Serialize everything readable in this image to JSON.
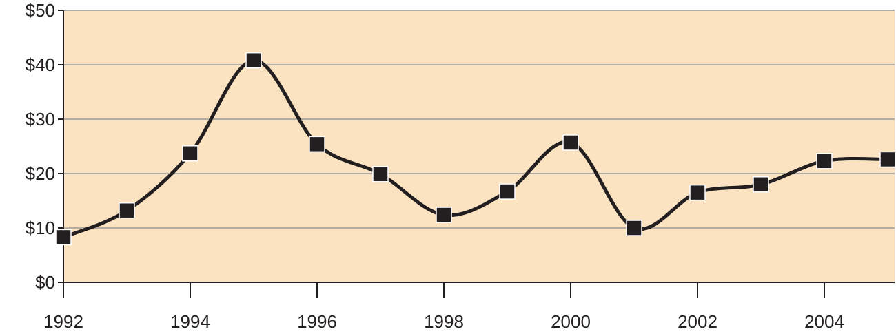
{
  "chart_data": {
    "type": "line",
    "x": [
      1992,
      1993,
      1994,
      1995,
      1996,
      1997,
      1998,
      1999,
      2000,
      2001,
      2002,
      2003,
      2004,
      2005
    ],
    "series": [
      {
        "values": [
          8.3,
          13.2,
          23.7,
          40.8,
          25.4,
          19.9,
          12.4,
          16.7,
          25.7,
          10.0,
          16.5,
          18.0,
          22.3,
          22.6
        ]
      }
    ],
    "xlim": [
      1992,
      2005
    ],
    "ylim": [
      0,
      50
    ],
    "x_ticks": [
      "1992",
      "1994",
      "1996",
      "1998",
      "2000",
      "2002",
      "2004"
    ],
    "y_ticks": [
      "$0",
      "$10",
      "$20",
      "$30",
      "$40",
      "$50"
    ],
    "grid": "horizontal",
    "colors": {
      "plot_background": "#fbe3c1",
      "line": "#231f20",
      "marker": "#231f20",
      "gridline": "#9a9a9a"
    }
  }
}
